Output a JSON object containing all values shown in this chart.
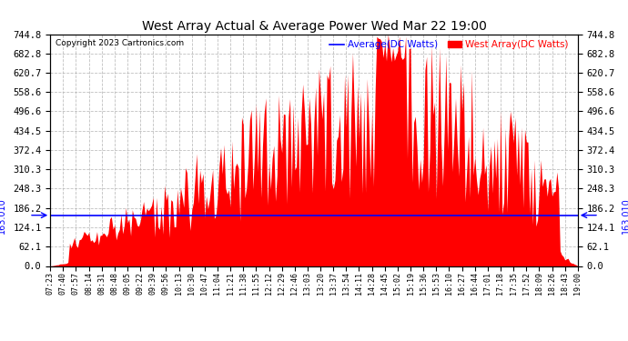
{
  "title": "West Array Actual & Average Power Wed Mar 22 19:00",
  "copyright": "Copyright 2023 Cartronics.com",
  "legend_average": "Average(DC Watts)",
  "legend_west": "West Array(DC Watts)",
  "avg_line_value": 163.01,
  "ymin": 0.0,
  "ymax": 744.8,
  "yticks": [
    0.0,
    62.1,
    124.1,
    186.2,
    248.3,
    310.3,
    372.4,
    434.5,
    496.6,
    558.6,
    620.7,
    682.8,
    744.8
  ],
  "avg_label": "163.010",
  "bg_color": "#ffffff",
  "fill_color": "#ff0000",
  "avg_color": "#0000ff",
  "grid_color": "#b0b0b0",
  "title_color": "#000000",
  "xtick_labels": [
    "07:23",
    "07:40",
    "07:57",
    "08:14",
    "08:31",
    "08:48",
    "09:05",
    "09:22",
    "09:39",
    "09:56",
    "10:13",
    "10:30",
    "10:47",
    "11:04",
    "11:21",
    "11:38",
    "11:55",
    "12:12",
    "12:29",
    "12:46",
    "13:03",
    "13:20",
    "13:37",
    "13:54",
    "14:11",
    "14:28",
    "14:45",
    "15:02",
    "15:19",
    "15:36",
    "15:53",
    "16:10",
    "16:27",
    "16:44",
    "17:01",
    "17:18",
    "17:35",
    "17:52",
    "18:09",
    "18:26",
    "18:43",
    "19:00"
  ]
}
